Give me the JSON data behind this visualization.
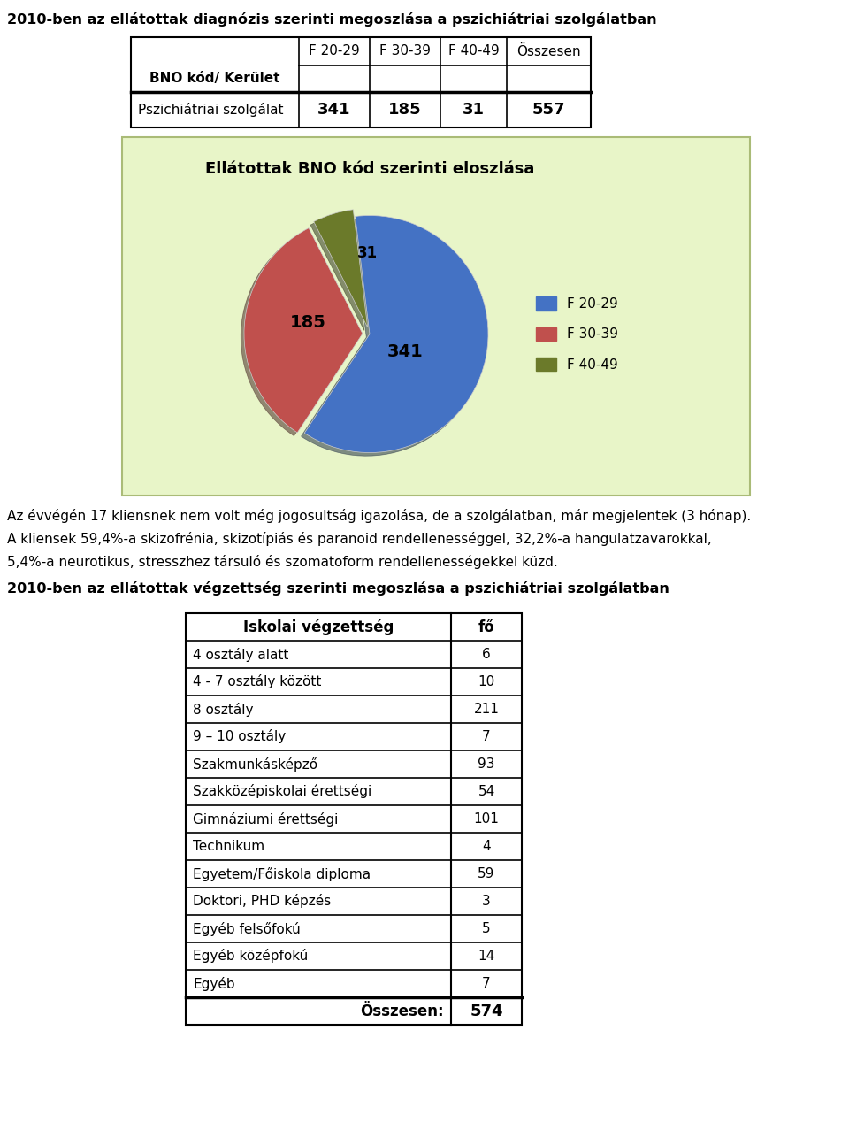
{
  "title1": "2010-ben az ellátottak diagnózis szerinti megoszlása a pszichiátriai szolgálatban",
  "table1_headers": [
    "BNO kód/ Kerület",
    "F 20-29",
    "F 30-39",
    "F 40-49",
    "Összesen"
  ],
  "table1_row": [
    "Pszichiátriai szolgálat",
    "341",
    "185",
    "31",
    "557"
  ],
  "pie_title": "Ellátottak BNO kód szerinti eloszlása",
  "pie_values": [
    341,
    185,
    31
  ],
  "pie_labels": [
    "341",
    "185",
    "31"
  ],
  "pie_colors": [
    "#4472C4",
    "#C0504D",
    "#6B7A2A"
  ],
  "pie_legend_labels": [
    "F 20-29",
    "F 30-39",
    "F 40-49"
  ],
  "pie_bg_color": "#E8F5C8",
  "pie_explode": [
    0.0,
    0.06,
    0.06
  ],
  "note_line1": "Az évvégén 17 kliensnek nem volt még jogosultság igazolása, de a szolgálatban, már megjelentek (3 hónap).",
  "note_line2": "A kliensek 59,4%-a skizofrénia, skizotípiás és paranoid rendellenességgel, 32,2%-a hangulatzavarokkal,",
  "note_line3": "5,4%-a neurotikus, stresszhez társuló és szomatoform rendellenességekkel küzd.",
  "title2": "2010-ben az ellátottak végzettség szerinti megoszlása a pszichiátriai szolgálatban",
  "table2_col1": [
    "4 osztály alatt",
    "4 - 7 osztály között",
    "8 osztály",
    "9 – 10 osztály",
    "Szakmunkásképző",
    "Szakközépiskolai érettségi",
    "Gimnáziumi érettségi",
    "Technikum",
    "Egyetem/Főiskola diploma",
    "Doktori, PHD képzés",
    "Egyéb felsőfokú",
    "Egyéb középfokú",
    "Egyéb"
  ],
  "table2_col2": [
    "6",
    "10",
    "211",
    "7",
    "93",
    "54",
    "101",
    "4",
    "59",
    "3",
    "5",
    "14",
    "7"
  ],
  "table2_header1": "Iskolai végzettség",
  "table2_header2": "fő",
  "table2_total_label": "Összesen:",
  "table2_total_value": "574"
}
